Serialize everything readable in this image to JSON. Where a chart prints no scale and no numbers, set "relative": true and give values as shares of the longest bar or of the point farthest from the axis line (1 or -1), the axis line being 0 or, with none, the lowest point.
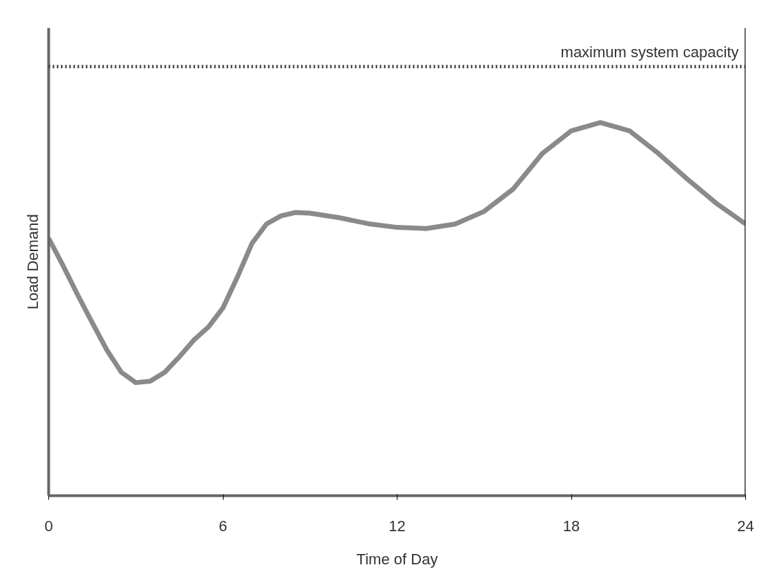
{
  "chart_data": {
    "type": "line",
    "relative": true,
    "xlabel": "Time of Day",
    "ylabel": "Load Demand",
    "x": [
      0,
      0.5,
      1,
      1.5,
      2,
      2.5,
      3,
      3.5,
      4,
      4.5,
      5,
      5.5,
      6,
      6.5,
      7,
      7.5,
      8,
      8.5,
      9,
      10,
      11,
      12,
      13,
      14,
      15,
      16,
      17,
      18,
      19,
      20,
      21,
      22,
      23,
      24
    ],
    "series": [
      {
        "color": "#8a8a8a",
        "values": [
          0.69,
          0.616,
          0.538,
          0.464,
          0.391,
          0.331,
          0.303,
          0.307,
          0.331,
          0.372,
          0.417,
          0.452,
          0.503,
          0.586,
          0.676,
          0.728,
          0.75,
          0.759,
          0.757,
          0.745,
          0.729,
          0.719,
          0.716,
          0.728,
          0.762,
          0.822,
          0.917,
          0.978,
          1.0,
          0.978,
          0.917,
          0.848,
          0.783,
          0.728
        ]
      }
    ],
    "xlim": [
      0,
      24
    ],
    "xticks": [
      0,
      6,
      12,
      18,
      24
    ],
    "grid": false,
    "marker": "none",
    "line_style": "solid",
    "ref_lines": [
      {
        "axis": "y",
        "value": 1.15,
        "label": "maximum system capacity",
        "color": "#333333",
        "line_style": "dotted"
      }
    ]
  }
}
